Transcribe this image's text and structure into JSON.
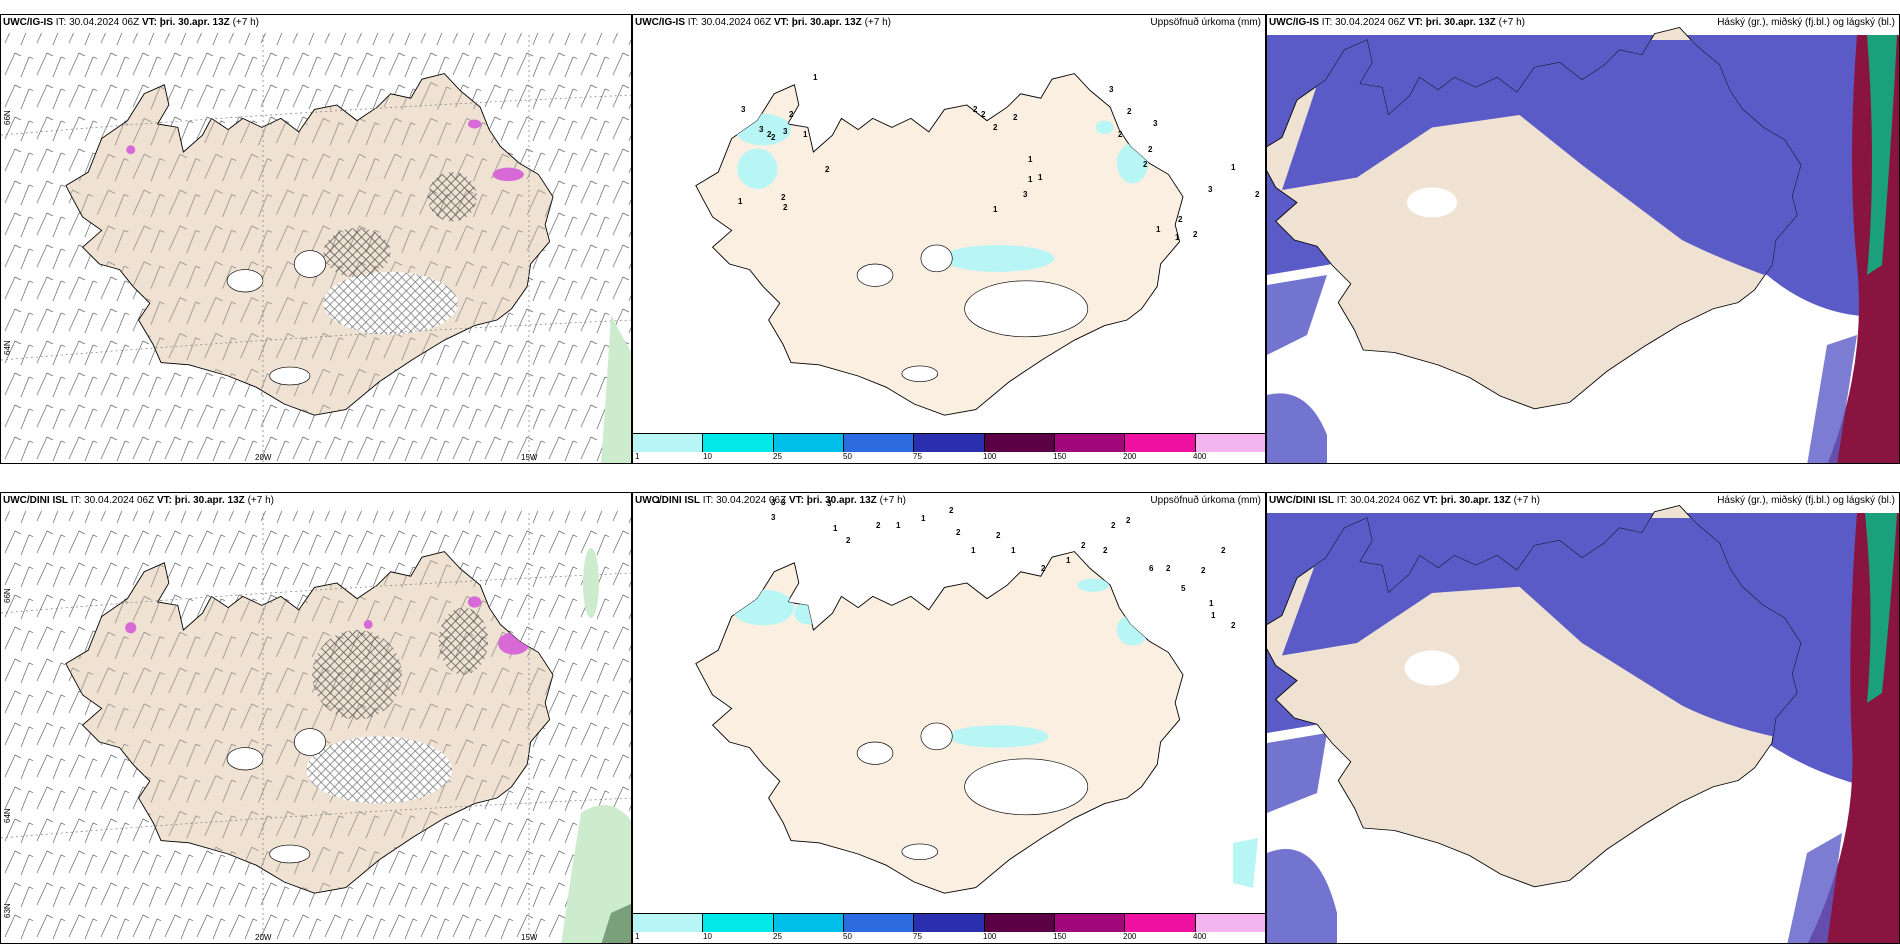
{
  "rows": [
    {
      "model": "UWC/IG-IS",
      "it_label": "IT:",
      "it_value": "30.04.2024 06Z",
      "vt_label": "VT:",
      "vt_value": "þri. 30.apr. 13Z",
      "lead": "(+7 h)"
    },
    {
      "model": "UWC/DINI ISL",
      "it_label": "IT:",
      "it_value": "30.04.2024 06Z",
      "vt_label": "VT:",
      "vt_value": "þri. 30.apr. 13Z",
      "lead": "(+7 h)"
    }
  ],
  "titles": {
    "precip": "Uppsöfnuð úrkoma (mm)",
    "clouds": "Háský (gr.), miðský (fj.bl.) og lágský (bl.)"
  },
  "axis_labels": {
    "lat66": "66N",
    "lat64": "64N",
    "lat63": "63N",
    "lon20": "20W",
    "lon15": "15W"
  },
  "colorbar": {
    "ticks": [
      "1",
      "10",
      "25",
      "50",
      "75",
      "100",
      "150",
      "200",
      "400"
    ],
    "colors": [
      "#b8f6f6",
      "#00e8e8",
      "#00bfe8",
      "#2c6be0",
      "#2a2fb0",
      "#5c0045",
      "#a2087a",
      "#ee10a0",
      "#f4b4f0"
    ]
  },
  "colors": {
    "land": "#efe2d2",
    "land_precip": "#fbefe2",
    "snow_white": "#ffffff",
    "cloud_high_dark": "#5b5bc8",
    "cloud_mid_red": "#8a1440",
    "cloud_green": "#1aa07a",
    "precip_light": "#b8f6f6"
  },
  "precip_numbers_top": [
    "1",
    "3",
    "3",
    "2",
    "3",
    "2",
    "2",
    "1",
    "2",
    "2",
    "2",
    "1",
    "2",
    "2",
    "2",
    "2",
    "1",
    "1",
    "3",
    "1",
    "1",
    "3",
    "2",
    "3",
    "2",
    "2",
    "2",
    "2",
    "2",
    "1",
    "1",
    "3",
    "1",
    "2"
  ],
  "precip_numbers_bottom": [
    "1",
    "3",
    "3",
    "3",
    "3",
    "3",
    "3",
    "3",
    "3",
    "1",
    "2",
    "2",
    "1",
    "1",
    "2",
    "2",
    "1",
    "2",
    "1",
    "2",
    "1",
    "2",
    "2",
    "2",
    "2",
    "6",
    "2",
    "5",
    "2",
    "1",
    "1",
    "2",
    "2"
  ]
}
